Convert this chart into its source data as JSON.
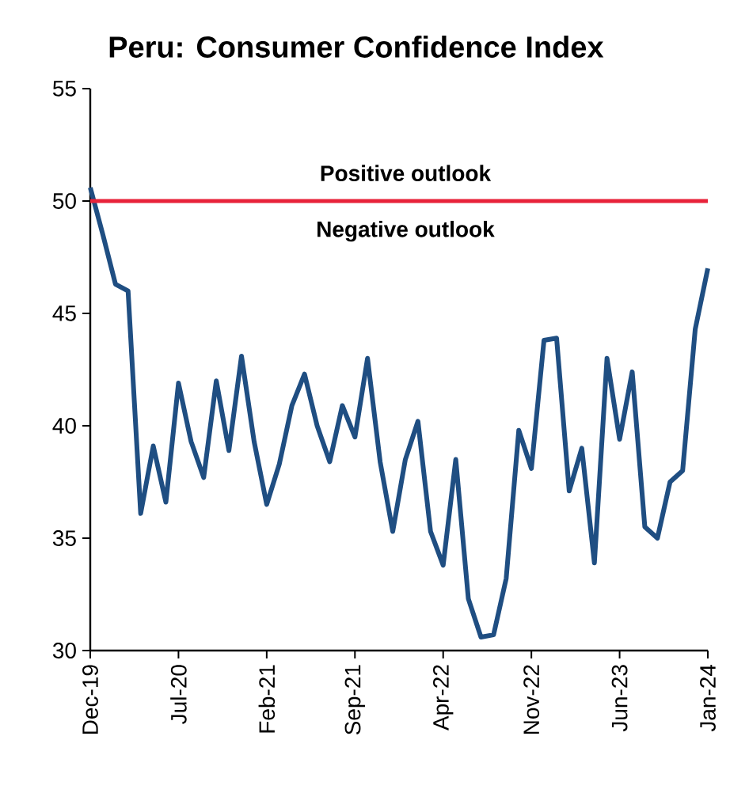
{
  "chart_data": {
    "type": "line",
    "title": "Peru: Consumer Confidence Index",
    "x": [
      "2019-12",
      "2020-01",
      "2020-02",
      "2020-03",
      "2020-04",
      "2020-05",
      "2020-06",
      "2020-07",
      "2020-08",
      "2020-09",
      "2020-10",
      "2020-11",
      "2020-12",
      "2021-01",
      "2021-02",
      "2021-03",
      "2021-04",
      "2021-05",
      "2021-06",
      "2021-07",
      "2021-08",
      "2021-09",
      "2021-10",
      "2021-11",
      "2021-12",
      "2022-01",
      "2022-02",
      "2022-03",
      "2022-04",
      "2022-05",
      "2022-06",
      "2022-07",
      "2022-08",
      "2022-09",
      "2022-10",
      "2022-11",
      "2022-12",
      "2023-01",
      "2023-02",
      "2023-03",
      "2023-04",
      "2023-05",
      "2023-06",
      "2023-07",
      "2023-08",
      "2023-09",
      "2023-10",
      "2023-11",
      "2023-12",
      "2024-01"
    ],
    "series": [
      {
        "color": "#1f4e82",
        "values": [
          50.6,
          48.5,
          46.3,
          46.0,
          36.1,
          39.1,
          36.6,
          41.9,
          39.3,
          37.7,
          42.0,
          38.9,
          43.1,
          39.3,
          36.5,
          38.3,
          40.9,
          42.3,
          40.0,
          38.4,
          40.9,
          39.5,
          43.0,
          38.4,
          35.3,
          38.5,
          40.2,
          35.3,
          33.8,
          38.5,
          32.3,
          30.6,
          30.7,
          33.2,
          39.8,
          38.1,
          43.8,
          43.9,
          37.1,
          39.0,
          33.9,
          43.0,
          39.4,
          42.4,
          35.5,
          35.0,
          37.5,
          38.0,
          44.3,
          47.0
        ]
      }
    ],
    "xlim": [
      "2019-12",
      "2024-01"
    ],
    "xticks": [
      {
        "value": "2019-12",
        "label": "Dec-19"
      },
      {
        "value": "2020-07",
        "label": "Jul-20"
      },
      {
        "value": "2021-02",
        "label": "Feb-21"
      },
      {
        "value": "2021-09",
        "label": "Sep-21"
      },
      {
        "value": "2022-04",
        "label": "Apr-22"
      },
      {
        "value": "2022-11",
        "label": "Nov-22"
      },
      {
        "value": "2023-06",
        "label": "Jun-23"
      },
      {
        "value": "2024-01",
        "label": "Jan-24"
      }
    ],
    "ylim": [
      30,
      55
    ],
    "yticks": [
      30,
      35,
      40,
      45,
      50,
      55
    ],
    "grid": false,
    "marker": "none",
    "line_style": "solid",
    "ref_lines": [
      {
        "axis": "y",
        "value": 50,
        "color": "#e8233a"
      }
    ],
    "annotations": [
      "Positive outlook",
      "Negative outlook"
    ]
  }
}
